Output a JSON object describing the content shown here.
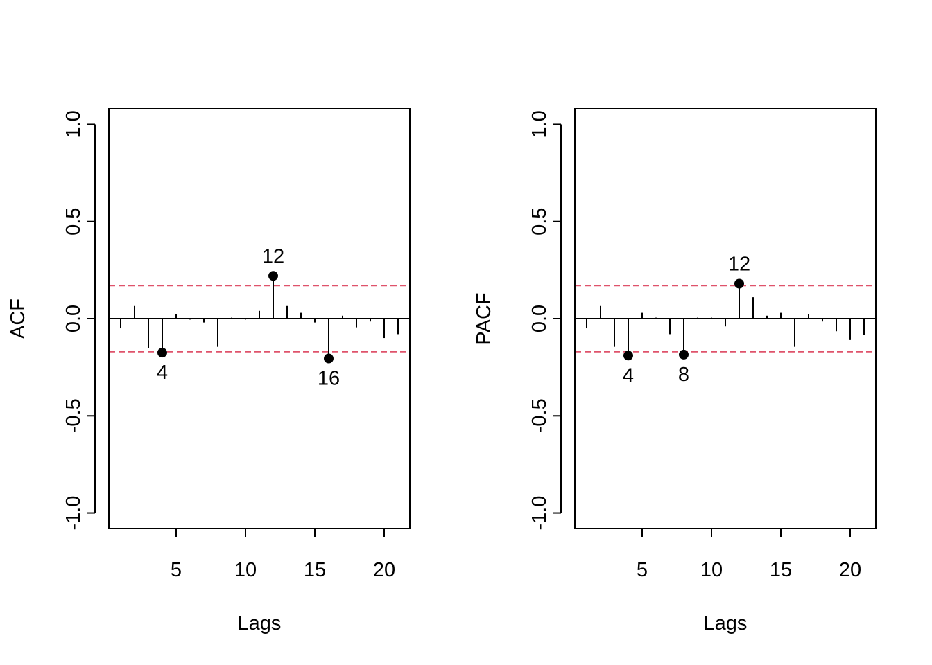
{
  "colors": {
    "background": "#ffffff",
    "axis": "#000000",
    "spike": "#000000",
    "confidence_band": "#df536b"
  },
  "chart_data": [
    {
      "type": "bar",
      "title": "",
      "xlabel": "Lags",
      "ylabel": "ACF",
      "xlim": [
        0.15,
        21.85
      ],
      "ylim": [
        -1.08,
        1.08
      ],
      "xticks": [
        5,
        10,
        15,
        20
      ],
      "xtick_labels": [
        "5",
        "10",
        "15",
        "20"
      ],
      "yticks": [
        -1.0,
        -0.5,
        0.0,
        0.5,
        1.0
      ],
      "ytick_labels": [
        "-1.0",
        "-0.5",
        "0.0",
        "0.5",
        "1.0"
      ],
      "confidence_bounds": [
        0.17,
        -0.17
      ],
      "lags": [
        1,
        2,
        3,
        4,
        5,
        6,
        7,
        8,
        9,
        10,
        11,
        12,
        13,
        14,
        15,
        16,
        17,
        18,
        19,
        20,
        21
      ],
      "values": [
        -0.05,
        0.065,
        -0.15,
        -0.175,
        0.025,
        -0.005,
        -0.02,
        -0.145,
        0.005,
        -0.005,
        0.04,
        0.22,
        0.065,
        0.03,
        -0.02,
        -0.205,
        0.015,
        -0.045,
        -0.015,
        -0.1,
        -0.08
      ],
      "highlighted": [
        {
          "lag": 4,
          "value": -0.175,
          "label": "4"
        },
        {
          "lag": 12,
          "value": 0.22,
          "label": "12"
        },
        {
          "lag": 16,
          "value": -0.205,
          "label": "16"
        }
      ]
    },
    {
      "type": "bar",
      "title": "",
      "xlabel": "Lags",
      "ylabel": "PACF",
      "xlim": [
        0.15,
        21.85
      ],
      "ylim": [
        -1.08,
        1.08
      ],
      "xticks": [
        5,
        10,
        15,
        20
      ],
      "xtick_labels": [
        "5",
        "10",
        "15",
        "20"
      ],
      "yticks": [
        -1.0,
        -0.5,
        0.0,
        0.5,
        1.0
      ],
      "ytick_labels": [
        "-1.0",
        "-0.5",
        "0.0",
        "0.5",
        "1.0"
      ],
      "confidence_bounds": [
        0.17,
        -0.17
      ],
      "lags": [
        1,
        2,
        3,
        4,
        5,
        6,
        7,
        8,
        9,
        10,
        11,
        12,
        13,
        14,
        15,
        16,
        17,
        18,
        19,
        20,
        21
      ],
      "values": [
        -0.05,
        0.065,
        -0.145,
        -0.19,
        0.03,
        0.005,
        -0.08,
        -0.185,
        0.005,
        0.005,
        -0.04,
        0.18,
        0.11,
        0.015,
        0.03,
        -0.145,
        0.025,
        -0.015,
        -0.065,
        -0.11,
        -0.085
      ],
      "highlighted": [
        {
          "lag": 4,
          "value": -0.19,
          "label": "4"
        },
        {
          "lag": 8,
          "value": -0.185,
          "label": "8"
        },
        {
          "lag": 12,
          "value": 0.18,
          "label": "12"
        }
      ]
    }
  ]
}
